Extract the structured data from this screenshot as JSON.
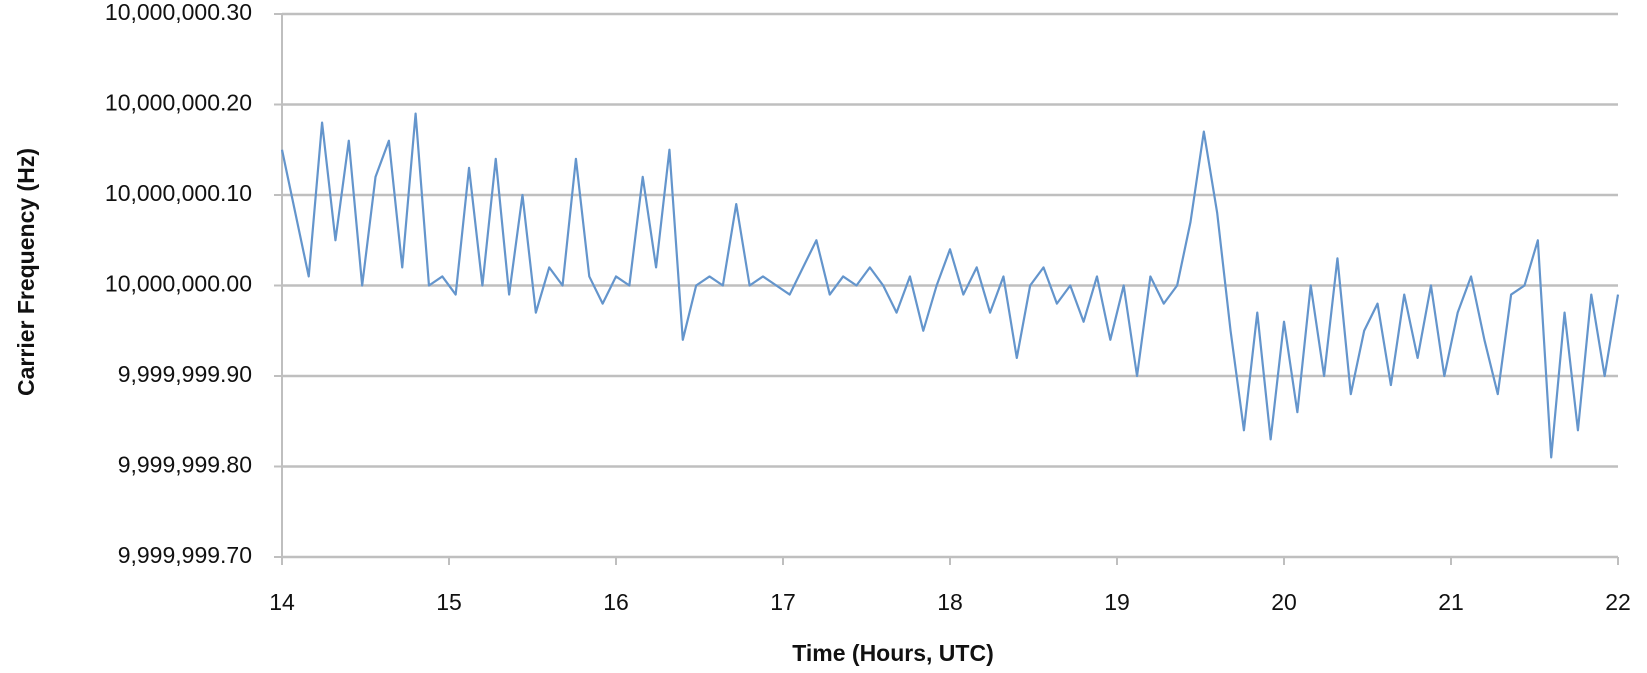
{
  "chart_data": {
    "type": "line",
    "x_label": "Time (Hours, UTC)",
    "y_label": "Carrier Frequency (Hz)",
    "color": "#6495cc",
    "grid": true,
    "xlim": [
      14,
      22
    ],
    "xticks": [
      14,
      15,
      16,
      17,
      18,
      19,
      20,
      21,
      22
    ],
    "ylim": [
      9999999.7,
      10000000.3
    ],
    "yticks": [
      {
        "value": 9999999.7,
        "label": "9,999,999.70"
      },
      {
        "value": 9999999.8,
        "label": "9,999,999.80"
      },
      {
        "value": 9999999.9,
        "label": "9,999,999.90"
      },
      {
        "value": 10000000,
        "label": "10,000,000.00"
      },
      {
        "value": 10000000.1,
        "label": "10,000,000.10"
      },
      {
        "value": 10000000.2,
        "label": "10,000,000.20"
      },
      {
        "value": 10000000.3,
        "label": "10,000,000.30"
      }
    ],
    "x": [
      14,
      14.08,
      14.16,
      14.24,
      14.32,
      14.4,
      14.48,
      14.56,
      14.64,
      14.72,
      14.8,
      14.88,
      14.96,
      15.04,
      15.12,
      15.2,
      15.28,
      15.36,
      15.44,
      15.52,
      15.6,
      15.68,
      15.76,
      15.84,
      15.92,
      16,
      16.08,
      16.16,
      16.24,
      16.32,
      16.4,
      16.48,
      16.56,
      16.64,
      16.72,
      16.8,
      16.88,
      16.96,
      17.04,
      17.12,
      17.2,
      17.28,
      17.36,
      17.44,
      17.52,
      17.6,
      17.68,
      17.76,
      17.84,
      17.92,
      18,
      18.08,
      18.16,
      18.24,
      18.32,
      18.4,
      18.48,
      18.56,
      18.64,
      18.72,
      18.8,
      18.88,
      18.96,
      19.04,
      19.12,
      19.2,
      19.28,
      19.36,
      19.44,
      19.52,
      19.6,
      19.68,
      19.76,
      19.84,
      19.92,
      20,
      20.08,
      20.16,
      20.24,
      20.32,
      20.4,
      20.48,
      20.56,
      20.64,
      20.72,
      20.8,
      20.88,
      20.96,
      21.04,
      21.12,
      21.2,
      21.28,
      21.36,
      21.44,
      21.52,
      21.6,
      21.68,
      21.76,
      21.84,
      21.92,
      22
    ],
    "values": [
      10000000.15,
      10000000.08,
      10000000.01,
      10000000.18,
      10000000.05,
      10000000.16,
      10000000,
      10000000.12,
      10000000.16,
      10000000.02,
      10000000.19,
      10000000,
      10000000.01,
      9999999.99,
      10000000.13,
      10000000,
      10000000.14,
      9999999.99,
      10000000.1,
      9999999.97,
      10000000.02,
      10000000,
      10000000.14,
      10000000.01,
      9999999.98,
      10000000.01,
      10000000,
      10000000.12,
      10000000.02,
      10000000.15,
      9999999.94,
      10000000,
      10000000.01,
      10000000,
      10000000.09,
      10000000,
      10000000.01,
      10000000,
      9999999.99,
      10000000.02,
      10000000.05,
      9999999.99,
      10000000.01,
      10000000,
      10000000.02,
      10000000,
      9999999.97,
      10000000.01,
      9999999.95,
      10000000,
      10000000.04,
      9999999.99,
      10000000.02,
      9999999.97,
      10000000.01,
      9999999.92,
      10000000,
      10000000.02,
      9999999.98,
      10000000,
      9999999.96,
      10000000.01,
      9999999.94,
      10000000,
      9999999.9,
      10000000.01,
      9999999.98,
      10000000,
      10000000.07,
      10000000.17,
      10000000.08,
      9999999.95,
      9999999.84,
      9999999.97,
      9999999.83,
      9999999.96,
      9999999.86,
      10000000,
      9999999.9,
      10000000.03,
      9999999.88,
      9999999.95,
      9999999.98,
      9999999.89,
      9999999.99,
      9999999.92,
      10000000,
      9999999.9,
      9999999.97,
      10000000.01,
      9999999.94,
      9999999.88,
      9999999.99,
      10000000,
      10000000.05,
      9999999.81,
      9999999.97,
      9999999.84,
      9999999.99,
      9999999.9,
      9999999.99
    ]
  }
}
